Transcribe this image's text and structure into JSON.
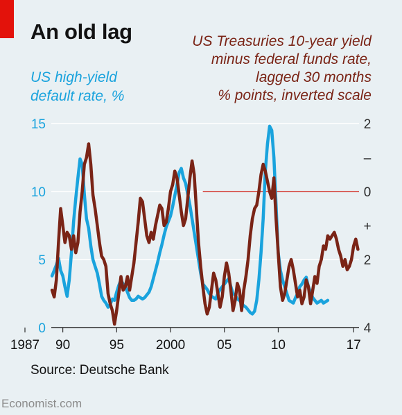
{
  "header": {
    "title": "An old lag",
    "accent_color": "#e3120b"
  },
  "labels": {
    "left": [
      "US high-yield",
      "default rate, %"
    ],
    "right": [
      "US Treasuries 10-year yield",
      "minus federal funds rate,",
      "lagged 30 months",
      "% points, inverted scale"
    ]
  },
  "footer": {
    "source": "Source: Deutsche Bank",
    "brand": "Economist.com"
  },
  "colors": {
    "default_rate": "#1aa3dd",
    "yield_spread": "#7a2416",
    "zero_line": "#d0332b",
    "grid": "#ffffff",
    "axis": "#2b2b2b",
    "left_ticks": "#1aa3dd",
    "right_ticks": "#2b2b2b"
  },
  "chart_data": {
    "type": "line",
    "x_ticks": [
      "1987",
      "90",
      "95",
      "2000",
      "05",
      "10",
      "17"
    ],
    "xlim": [
      1987,
      2017.5
    ],
    "left_axis": {
      "ticks": [
        "0",
        "5",
        "10",
        "15"
      ],
      "ylim": [
        0,
        15
      ]
    },
    "right_axis": {
      "inverted": true,
      "ticks": [
        "2",
        "–",
        "0",
        "+",
        "2",
        "4"
      ],
      "ylim": [
        -2,
        4
      ],
      "zero_line": true
    },
    "grid": true,
    "series": [
      {
        "name": "US high-yield default rate, %",
        "axis": "left",
        "points": [
          [
            1989.0,
            3.8
          ],
          [
            1989.2,
            4.2
          ],
          [
            1989.4,
            4.6
          ],
          [
            1989.6,
            5.1
          ],
          [
            1989.8,
            4.2
          ],
          [
            1990.0,
            3.8
          ],
          [
            1990.2,
            3.0
          ],
          [
            1990.4,
            2.3
          ],
          [
            1990.6,
            3.5
          ],
          [
            1990.8,
            5.5
          ],
          [
            1991.0,
            7.8
          ],
          [
            1991.2,
            9.5
          ],
          [
            1991.4,
            11.0
          ],
          [
            1991.6,
            12.4
          ],
          [
            1991.8,
            12.0
          ],
          [
            1992.0,
            9.8
          ],
          [
            1992.2,
            8.0
          ],
          [
            1992.4,
            7.3
          ],
          [
            1992.6,
            6.0
          ],
          [
            1992.8,
            5.0
          ],
          [
            1993.0,
            4.5
          ],
          [
            1993.2,
            4.0
          ],
          [
            1993.4,
            3.2
          ],
          [
            1993.6,
            2.3
          ],
          [
            1993.8,
            2.0
          ],
          [
            1994.0,
            1.8
          ],
          [
            1994.2,
            1.5
          ],
          [
            1994.4,
            1.7
          ],
          [
            1994.6,
            2.1
          ],
          [
            1994.8,
            2.0
          ],
          [
            1995.0,
            2.6
          ],
          [
            1995.2,
            3.1
          ],
          [
            1995.4,
            3.5
          ],
          [
            1995.6,
            3.2
          ],
          [
            1995.8,
            3.0
          ],
          [
            1996.0,
            2.6
          ],
          [
            1996.2,
            2.2
          ],
          [
            1996.4,
            2.0
          ],
          [
            1996.6,
            2.0
          ],
          [
            1996.8,
            2.1
          ],
          [
            1997.0,
            2.3
          ],
          [
            1997.2,
            2.2
          ],
          [
            1997.4,
            2.1
          ],
          [
            1997.6,
            2.2
          ],
          [
            1997.8,
            2.4
          ],
          [
            1998.0,
            2.6
          ],
          [
            1998.2,
            3.0
          ],
          [
            1998.4,
            3.6
          ],
          [
            1998.6,
            4.2
          ],
          [
            1998.8,
            4.8
          ],
          [
            1999.0,
            5.5
          ],
          [
            1999.2,
            6.1
          ],
          [
            1999.4,
            6.8
          ],
          [
            1999.6,
            7.4
          ],
          [
            1999.8,
            7.8
          ],
          [
            2000.0,
            8.2
          ],
          [
            2000.2,
            8.9
          ],
          [
            2000.4,
            9.7
          ],
          [
            2000.6,
            10.5
          ],
          [
            2000.8,
            11.4
          ],
          [
            2001.0,
            11.7
          ],
          [
            2001.2,
            11.0
          ],
          [
            2001.4,
            10.6
          ],
          [
            2001.6,
            9.8
          ],
          [
            2001.8,
            9.0
          ],
          [
            2002.0,
            8.0
          ],
          [
            2002.2,
            7.0
          ],
          [
            2002.4,
            6.0
          ],
          [
            2002.6,
            5.0
          ],
          [
            2002.8,
            4.0
          ],
          [
            2003.0,
            3.2
          ],
          [
            2003.2,
            3.0
          ],
          [
            2003.4,
            2.8
          ],
          [
            2003.6,
            2.5
          ],
          [
            2003.8,
            2.3
          ],
          [
            2004.0,
            2.2
          ],
          [
            2004.2,
            2.1
          ],
          [
            2004.4,
            2.5
          ],
          [
            2004.6,
            2.8
          ],
          [
            2004.8,
            3.0
          ],
          [
            2005.0,
            3.2
          ],
          [
            2005.2,
            3.4
          ],
          [
            2005.4,
            3.6
          ],
          [
            2005.6,
            3.0
          ],
          [
            2005.8,
            2.5
          ],
          [
            2006.0,
            2.4
          ],
          [
            2006.2,
            2.1
          ],
          [
            2006.4,
            2.0
          ],
          [
            2006.6,
            1.8
          ],
          [
            2006.8,
            1.6
          ],
          [
            2007.0,
            1.5
          ],
          [
            2007.2,
            1.3
          ],
          [
            2007.4,
            1.1
          ],
          [
            2007.6,
            1.0
          ],
          [
            2007.8,
            1.2
          ],
          [
            2008.0,
            2.0
          ],
          [
            2008.2,
            3.5
          ],
          [
            2008.4,
            5.5
          ],
          [
            2008.6,
            8.0
          ],
          [
            2008.8,
            11.5
          ],
          [
            2009.0,
            13.5
          ],
          [
            2009.2,
            14.8
          ],
          [
            2009.4,
            14.5
          ],
          [
            2009.6,
            12.5
          ],
          [
            2009.8,
            9.0
          ],
          [
            2010.0,
            5.5
          ],
          [
            2010.2,
            4.2
          ],
          [
            2010.4,
            3.5
          ],
          [
            2010.6,
            3.0
          ],
          [
            2010.8,
            2.5
          ],
          [
            2011.0,
            2.0
          ],
          [
            2011.2,
            1.9
          ],
          [
            2011.4,
            1.8
          ],
          [
            2011.6,
            2.2
          ],
          [
            2011.8,
            2.5
          ],
          [
            2012.0,
            3.0
          ],
          [
            2012.2,
            3.2
          ],
          [
            2012.4,
            3.5
          ],
          [
            2012.6,
            3.7
          ],
          [
            2012.8,
            3.0
          ],
          [
            2013.0,
            2.6
          ],
          [
            2013.2,
            2.2
          ],
          [
            2013.4,
            2.0
          ],
          [
            2013.6,
            1.8
          ],
          [
            2013.8,
            1.9
          ],
          [
            2014.0,
            2.0
          ],
          [
            2014.2,
            1.8
          ],
          [
            2014.4,
            1.9
          ],
          [
            2014.6,
            2.0
          ]
        ]
      },
      {
        "name": "US Treasuries 10-year yield minus federal funds rate, lagged 30 months",
        "axis": "right",
        "points": [
          [
            1989.0,
            2.9
          ],
          [
            1989.2,
            3.1
          ],
          [
            1989.4,
            2.6
          ],
          [
            1989.6,
            1.5
          ],
          [
            1989.8,
            0.5
          ],
          [
            1990.0,
            1.0
          ],
          [
            1990.2,
            1.5
          ],
          [
            1990.4,
            1.2
          ],
          [
            1990.6,
            1.3
          ],
          [
            1990.8,
            1.7
          ],
          [
            1991.0,
            1.3
          ],
          [
            1991.2,
            1.8
          ],
          [
            1991.4,
            1.5
          ],
          [
            1991.6,
            0.6
          ],
          [
            1991.8,
            0.0
          ],
          [
            1992.0,
            -0.8
          ],
          [
            1992.2,
            -1.0
          ],
          [
            1992.4,
            -1.4
          ],
          [
            1992.6,
            -0.8
          ],
          [
            1992.8,
            0.1
          ],
          [
            1993.0,
            0.5
          ],
          [
            1993.2,
            1.0
          ],
          [
            1993.4,
            1.5
          ],
          [
            1993.6,
            1.9
          ],
          [
            1993.8,
            2.0
          ],
          [
            1994.0,
            2.2
          ],
          [
            1994.2,
            3.0
          ],
          [
            1994.4,
            3.3
          ],
          [
            1994.6,
            3.5
          ],
          [
            1994.8,
            3.9
          ],
          [
            1995.0,
            3.5
          ],
          [
            1995.2,
            3.0
          ],
          [
            1995.4,
            2.5
          ],
          [
            1995.6,
            2.9
          ],
          [
            1995.8,
            2.8
          ],
          [
            1996.0,
            2.5
          ],
          [
            1996.2,
            2.9
          ],
          [
            1996.4,
            2.5
          ],
          [
            1996.6,
            2.1
          ],
          [
            1996.8,
            1.5
          ],
          [
            1997.0,
            0.9
          ],
          [
            1997.2,
            0.2
          ],
          [
            1997.4,
            0.3
          ],
          [
            1997.6,
            0.8
          ],
          [
            1997.8,
            1.3
          ],
          [
            1998.0,
            1.5
          ],
          [
            1998.2,
            1.2
          ],
          [
            1998.4,
            1.4
          ],
          [
            1998.6,
            1.0
          ],
          [
            1998.8,
            0.7
          ],
          [
            1999.0,
            0.4
          ],
          [
            1999.2,
            0.5
          ],
          [
            1999.4,
            1.0
          ],
          [
            1999.6,
            0.9
          ],
          [
            1999.8,
            0.5
          ],
          [
            2000.0,
            0.0
          ],
          [
            2000.2,
            -0.2
          ],
          [
            2000.4,
            -0.6
          ],
          [
            2000.6,
            -0.4
          ],
          [
            2000.8,
            0.1
          ],
          [
            2001.0,
            0.6
          ],
          [
            2001.2,
            1.0
          ],
          [
            2001.4,
            0.8
          ],
          [
            2001.6,
            0.2
          ],
          [
            2001.8,
            -0.4
          ],
          [
            2002.0,
            -0.9
          ],
          [
            2002.2,
            -0.5
          ],
          [
            2002.4,
            0.5
          ],
          [
            2002.6,
            1.5
          ],
          [
            2002.8,
            2.2
          ],
          [
            2003.0,
            2.8
          ],
          [
            2003.2,
            3.3
          ],
          [
            2003.4,
            3.6
          ],
          [
            2003.6,
            3.4
          ],
          [
            2003.8,
            2.9
          ],
          [
            2004.0,
            2.4
          ],
          [
            2004.2,
            2.6
          ],
          [
            2004.4,
            3.0
          ],
          [
            2004.6,
            3.4
          ],
          [
            2004.8,
            3.1
          ],
          [
            2005.0,
            2.5
          ],
          [
            2005.2,
            2.1
          ],
          [
            2005.4,
            2.4
          ],
          [
            2005.6,
            2.9
          ],
          [
            2005.8,
            3.5
          ],
          [
            2006.0,
            3.2
          ],
          [
            2006.2,
            2.7
          ],
          [
            2006.4,
            2.9
          ],
          [
            2006.6,
            3.5
          ],
          [
            2006.8,
            2.9
          ],
          [
            2007.0,
            2.5
          ],
          [
            2007.2,
            2.0
          ],
          [
            2007.4,
            1.3
          ],
          [
            2007.6,
            0.8
          ],
          [
            2007.8,
            0.5
          ],
          [
            2008.0,
            0.4
          ],
          [
            2008.2,
            0.0
          ],
          [
            2008.4,
            -0.5
          ],
          [
            2008.6,
            -0.8
          ],
          [
            2008.8,
            -0.6
          ],
          [
            2009.0,
            -0.3
          ],
          [
            2009.2,
            0.0
          ],
          [
            2009.4,
            0.2
          ],
          [
            2009.6,
            -0.4
          ],
          [
            2009.8,
            0.8
          ],
          [
            2010.0,
            1.8
          ],
          [
            2010.2,
            2.8
          ],
          [
            2010.4,
            3.2
          ],
          [
            2010.6,
            3.0
          ],
          [
            2010.8,
            2.6
          ],
          [
            2011.0,
            2.2
          ],
          [
            2011.2,
            2.0
          ],
          [
            2011.4,
            2.3
          ],
          [
            2011.6,
            2.7
          ],
          [
            2011.8,
            3.1
          ],
          [
            2012.0,
            2.9
          ],
          [
            2012.2,
            3.3
          ],
          [
            2012.4,
            3.1
          ],
          [
            2012.6,
            2.6
          ],
          [
            2012.8,
            2.8
          ],
          [
            2013.0,
            3.3
          ],
          [
            2013.2,
            2.9
          ],
          [
            2013.4,
            2.5
          ],
          [
            2013.6,
            2.7
          ],
          [
            2013.8,
            2.2
          ],
          [
            2014.0,
            2.0
          ],
          [
            2014.2,
            1.6
          ],
          [
            2014.4,
            1.7
          ],
          [
            2014.6,
            1.3
          ],
          [
            2014.8,
            1.4
          ],
          [
            2015.0,
            1.3
          ],
          [
            2015.2,
            1.2
          ],
          [
            2015.4,
            1.4
          ],
          [
            2015.6,
            1.7
          ],
          [
            2015.8,
            1.9
          ],
          [
            2016.0,
            2.2
          ],
          [
            2016.2,
            2.0
          ],
          [
            2016.4,
            2.3
          ],
          [
            2016.6,
            2.2
          ],
          [
            2016.8,
            2.0
          ],
          [
            2017.0,
            1.6
          ],
          [
            2017.2,
            1.4
          ],
          [
            2017.4,
            1.7
          ]
        ]
      }
    ]
  }
}
